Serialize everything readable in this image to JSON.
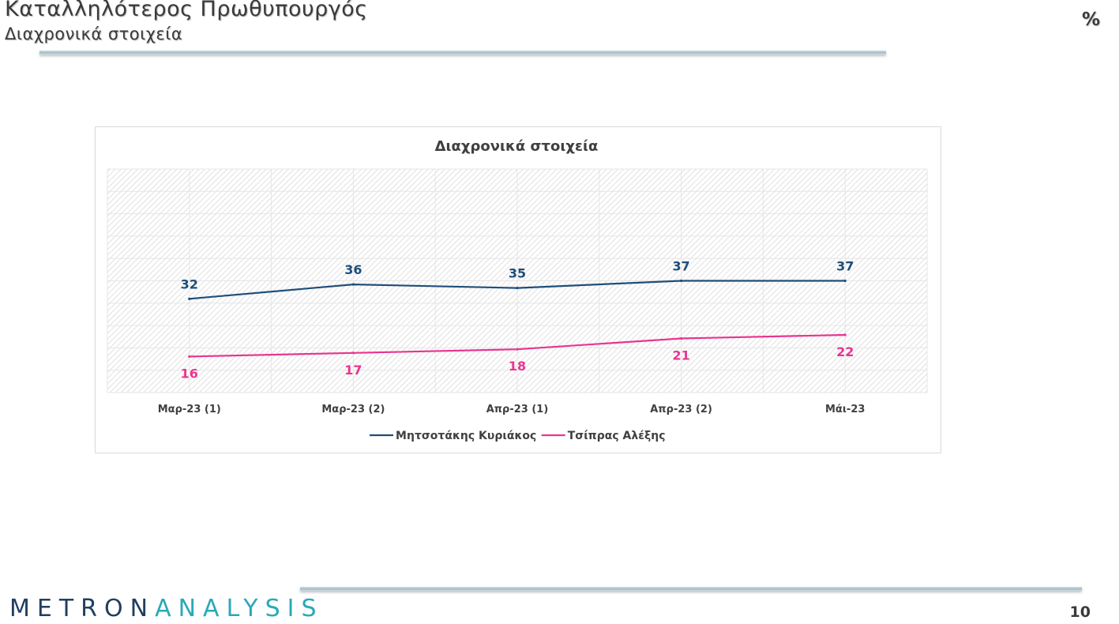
{
  "header": {
    "title": "Καταλληλότερος Πρωθυπουργός",
    "subtitle": "Διαχρονικά στοιχεία",
    "unit": "%"
  },
  "footer": {
    "logo_primary": "METRON",
    "logo_accent": "ANALYSIS",
    "page_number": "10"
  },
  "colors": {
    "mitsotakis": "#1f4e79",
    "tsipras": "#e8358f",
    "axis_text": "#404040",
    "plot_hatch": "#d4d4d4"
  },
  "chart_data": {
    "type": "line",
    "title": "Διαχρονικά στοιχεία",
    "categories": [
      "Μαρ-23 (1)",
      "Μαρ-23 (2)",
      "Απρ-23 (1)",
      "Απρ-23 (2)",
      "Μάι-23"
    ],
    "series": [
      {
        "name": "Μητσοτάκης Κυριάκος",
        "values": [
          32,
          36,
          35,
          37,
          37
        ],
        "color": "#1f4e79",
        "label_position": "above"
      },
      {
        "name": "Τσίπρας Αλέξης",
        "values": [
          16,
          17,
          18,
          21,
          22
        ],
        "color": "#e8358f",
        "label_position": "below"
      }
    ],
    "ylim": [
      6,
      68
    ],
    "grid": true,
    "legend_position": "bottom"
  }
}
